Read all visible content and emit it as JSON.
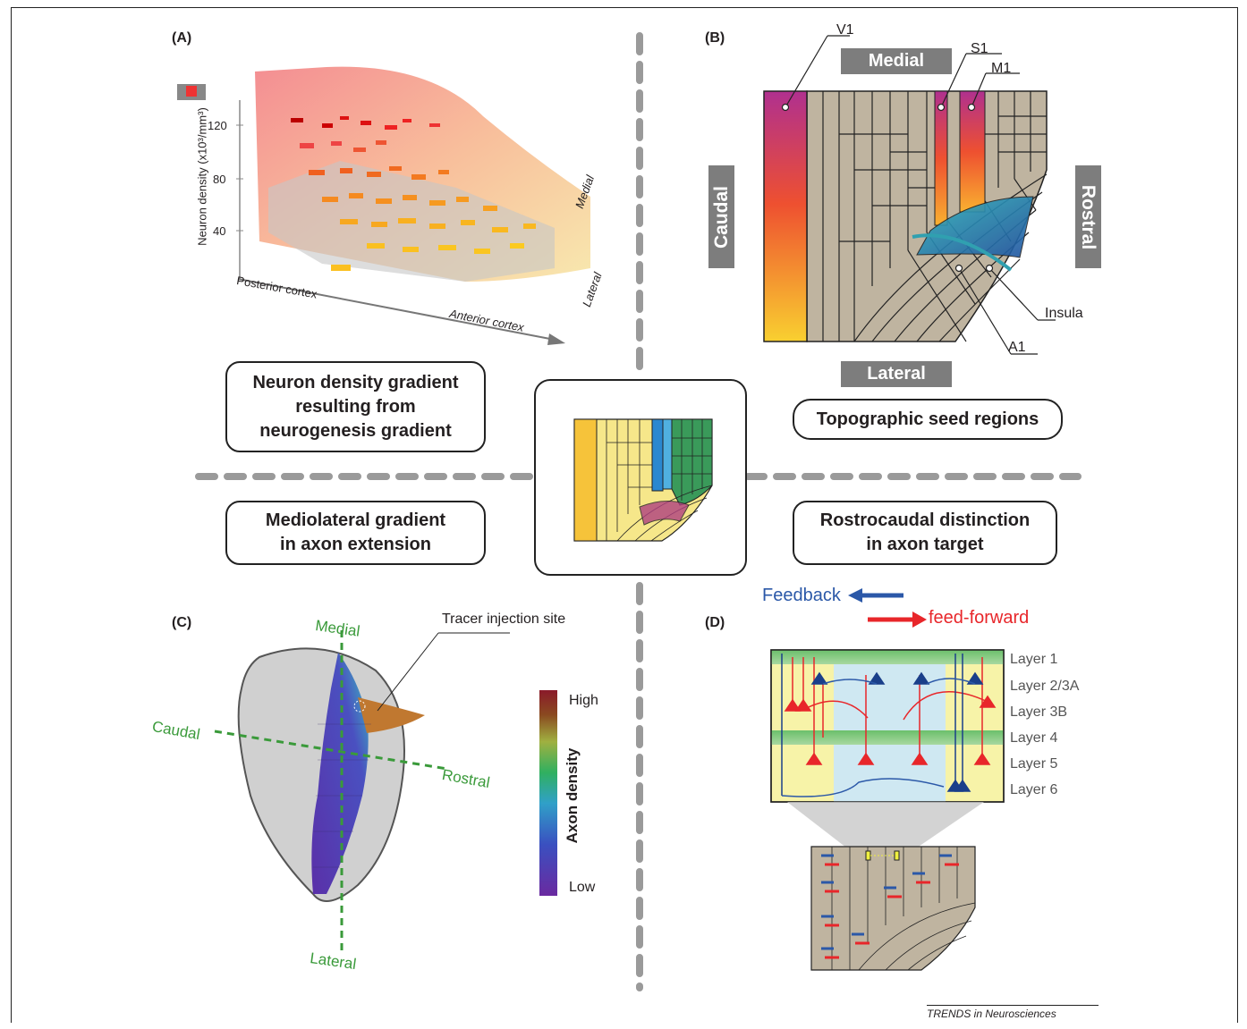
{
  "panels": {
    "a": "(A)",
    "b": "(B)",
    "c": "(C)",
    "d": "(D)"
  },
  "panel_a": {
    "y_axis_label": "Neuron density (x10³/mm³)",
    "ticks": [
      "120",
      "80",
      "40"
    ],
    "x_axis_label": "Anterior cortex",
    "posterior_label": "Posterior cortex",
    "medial_label": "Medial",
    "lateral_label": "Lateral"
  },
  "panel_b": {
    "labels": {
      "v1": "V1",
      "s1": "S1",
      "m1": "M1",
      "insula": "Insula",
      "a1": "A1"
    },
    "medial": "Medial",
    "lateral": "Lateral",
    "caudal": "Caudal",
    "rostral": "Rostral"
  },
  "boxes": {
    "neuron_density": "Neuron density gradient resulting from neurogenesis gradient",
    "topographic": "Topographic seed regions",
    "mediolateral": "Mediolateral gradient in axon extension",
    "rostrocaudal": "Rostrocaudal distinction in axon target"
  },
  "panel_c": {
    "medial": "Medial",
    "lateral": "Lateral",
    "caudal": "Caudal",
    "rostral": "Rostral",
    "tracer": "Tracer injection site",
    "colorbar_title": "Axon density",
    "high": "High",
    "low": "Low"
  },
  "panel_d": {
    "feedback": "Feedback",
    "feedforward": "feed-forward",
    "layers": [
      "Layer 1",
      "Layer 2/3A",
      "Layer 3B",
      "Layer 4",
      "Layer 5",
      "Layer 6"
    ]
  },
  "footer": "TRENDS in Neurosciences",
  "colors": {
    "tan": "#bfb4a0",
    "dash": "#9a9a9a",
    "green_axis": "#3a9a3a",
    "feedback": "#2b58a8",
    "feedforward": "#e8262a"
  }
}
